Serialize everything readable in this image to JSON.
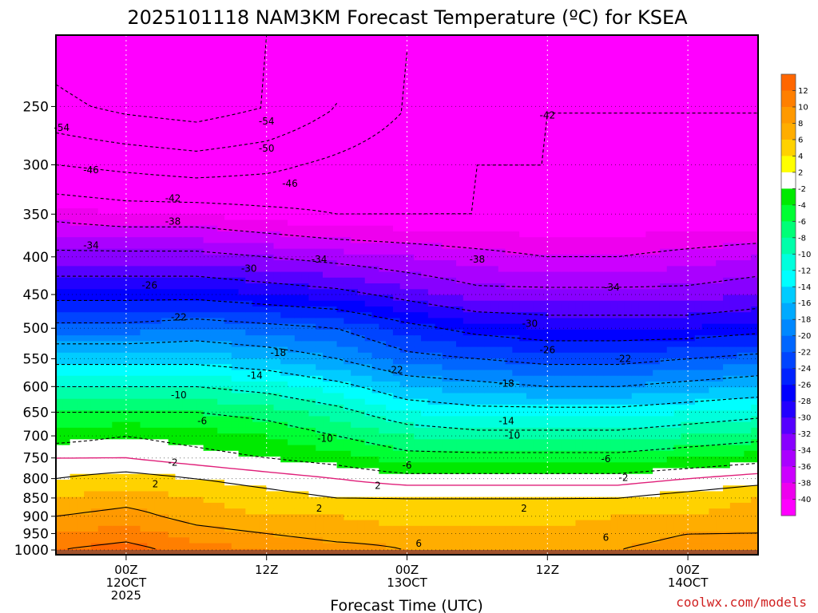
{
  "title": "2025101118 NAM3KM Forecast Temperature (ºC) for KSEA",
  "credit": "coolwx.com/models",
  "chart_data": {
    "type": "heatmap",
    "title": "2025101118 NAM3KM Forecast Temperature (ºC) for KSEA",
    "xlabel": "Forecast Time (UTC)",
    "ylabel": "",
    "x_ticks": [
      {
        "hour": 6,
        "l1": "00Z",
        "l2": "12OCT",
        "l3": "2025"
      },
      {
        "hour": 18,
        "l1": "12Z",
        "l2": "",
        "l3": ""
      },
      {
        "hour": 30,
        "l1": "00Z",
        "l2": "13OCT",
        "l3": ""
      },
      {
        "hour": 42,
        "l1": "12Z",
        "l2": "",
        "l3": ""
      },
      {
        "hour": 54,
        "l1": "00Z",
        "l2": "14OCT",
        "l3": ""
      }
    ],
    "xlim": [
      0,
      60
    ],
    "y_ticks": [
      250,
      300,
      350,
      400,
      450,
      500,
      550,
      600,
      650,
      700,
      750,
      800,
      850,
      900,
      950,
      1000
    ],
    "ylim": [
      1015,
      200
    ],
    "y_scale": "log",
    "grid": true,
    "times": [
      0,
      6,
      12,
      18,
      24,
      30,
      36,
      42,
      48,
      54,
      60
    ],
    "levels": [
      200,
      250,
      300,
      350,
      400,
      450,
      500,
      550,
      600,
      650,
      700,
      750,
      800,
      850,
      900,
      950,
      1000
    ],
    "temperature": [
      [
        -56,
        -58,
        -56,
        -54,
        -50,
        -46,
        -44,
        -42,
        -42,
        -42,
        -42
      ],
      [
        -53,
        -55,
        -56,
        -54,
        -50,
        -46,
        -44,
        -42,
        -42,
        -42,
        -42
      ],
      [
        -46,
        -47,
        -48,
        -47,
        -45,
        -43,
        -42,
        -42,
        -42,
        -42,
        -42
      ],
      [
        -39,
        -40,
        -40,
        -41,
        -42,
        -42,
        -42,
        -42,
        -42,
        -42,
        -42
      ],
      [
        -33,
        -33,
        -33,
        -34,
        -35,
        -36,
        -37,
        -38,
        -38,
        -37,
        -36
      ],
      [
        -27,
        -27,
        -27,
        -28,
        -29,
        -31,
        -33,
        -33,
        -33,
        -33,
        -32
      ],
      [
        -21,
        -21,
        -20,
        -21,
        -22,
        -25,
        -27,
        -28,
        -28,
        -28,
        -27
      ],
      [
        -15,
        -15,
        -15,
        -16,
        -18,
        -21,
        -22,
        -23,
        -23,
        -22,
        -21
      ],
      [
        -10,
        -10,
        -10,
        -11,
        -13,
        -16,
        -17,
        -18,
        -18,
        -17,
        -16
      ],
      [
        -6,
        -6,
        -6,
        -7,
        -9,
        -12,
        -13,
        -13,
        -13,
        -12,
        -11
      ],
      [
        -3,
        -2,
        -3,
        -4,
        -6,
        -8,
        -9,
        -9,
        -9,
        -8,
        -7
      ],
      [
        0,
        0,
        -1,
        -2,
        -3,
        -5,
        -5,
        -5,
        -5,
        -4,
        -3
      ],
      [
        2,
        3,
        2,
        1,
        0,
        -1,
        -1,
        -1,
        -1,
        0,
        1
      ],
      [
        4,
        5,
        4,
        3,
        2,
        2,
        2,
        2,
        2,
        3,
        4
      ],
      [
        6,
        7,
        5,
        4,
        4,
        3,
        3,
        3,
        4,
        4,
        5
      ],
      [
        8,
        9,
        7,
        6,
        5,
        5,
        5,
        5,
        5,
        6,
        6
      ],
      [
        10,
        11,
        9,
        8,
        7,
        6,
        6,
        6,
        6,
        7,
        8
      ]
    ],
    "contour_labels": [
      {
        "t": 0.5,
        "p": 267,
        "v": "-54"
      },
      {
        "t": 18,
        "p": 262,
        "v": "-54"
      },
      {
        "t": 42,
        "p": 257,
        "v": "-42"
      },
      {
        "t": 18,
        "p": 285,
        "v": "-50"
      },
      {
        "t": 3,
        "p": 305,
        "v": "-46"
      },
      {
        "t": 20,
        "p": 318,
        "v": "-46"
      },
      {
        "t": 10,
        "p": 333,
        "v": "-42"
      },
      {
        "t": 10,
        "p": 358,
        "v": "-38"
      },
      {
        "t": 36,
        "p": 403,
        "v": "-38"
      },
      {
        "t": 3,
        "p": 386,
        "v": "-34"
      },
      {
        "t": 22.5,
        "p": 403,
        "v": "-34"
      },
      {
        "t": 47.5,
        "p": 440,
        "v": "-34"
      },
      {
        "t": 16.5,
        "p": 415,
        "v": "-30"
      },
      {
        "t": 8,
        "p": 437,
        "v": "-26"
      },
      {
        "t": 42,
        "p": 535,
        "v": "-26"
      },
      {
        "t": 40.5,
        "p": 493,
        "v": "-30"
      },
      {
        "t": 10.5,
        "p": 483,
        "v": "-22"
      },
      {
        "t": 29,
        "p": 570,
        "v": "-22"
      },
      {
        "t": 48.5,
        "p": 550,
        "v": "-22"
      },
      {
        "t": 19,
        "p": 540,
        "v": "-18"
      },
      {
        "t": 38.5,
        "p": 594,
        "v": "-18"
      },
      {
        "t": 17,
        "p": 580,
        "v": "-14"
      },
      {
        "t": 38.5,
        "p": 668,
        "v": "-14"
      },
      {
        "t": 10.5,
        "p": 616,
        "v": "-10"
      },
      {
        "t": 23,
        "p": 706,
        "v": "-10"
      },
      {
        "t": 39,
        "p": 699,
        "v": "-10"
      },
      {
        "t": 12.5,
        "p": 668,
        "v": "-6"
      },
      {
        "t": 30,
        "p": 768,
        "v": "-6"
      },
      {
        "t": 47,
        "p": 752,
        "v": "-6"
      },
      {
        "t": 10,
        "p": 761,
        "v": "-2"
      },
      {
        "t": 48.5,
        "p": 798,
        "v": "-2"
      },
      {
        "t": 8.5,
        "p": 814,
        "v": "2"
      },
      {
        "t": 27.5,
        "p": 818,
        "v": "2"
      },
      {
        "t": 22.5,
        "p": 878,
        "v": "2"
      },
      {
        "t": 40,
        "p": 878,
        "v": "2"
      },
      {
        "t": 31,
        "p": 980,
        "v": "6"
      },
      {
        "t": 47,
        "p": 962,
        "v": "6"
      }
    ],
    "colorbar": {
      "labels": [
        "12",
        "10",
        "8",
        "6",
        "4",
        "2",
        "-2",
        "-4",
        "-6",
        "-8",
        "-10",
        "-12",
        "-14",
        "-16",
        "-18",
        "-20",
        "-22",
        "-24",
        "-26",
        "-28",
        "-30",
        "-32",
        "-34",
        "-36",
        "-38",
        "-40"
      ],
      "colors": [
        "#ff6600",
        "#ff7f00",
        "#ff9900",
        "#ffad00",
        "#ffd200",
        "#ffff00",
        "#ffffff",
        "#00ea00",
        "#00ff33",
        "#00ff77",
        "#00ffaa",
        "#00ffdd",
        "#00ffff",
        "#00ccff",
        "#00aaff",
        "#0088ff",
        "#0066ff",
        "#0044ff",
        "#0022ff",
        "#0000ff",
        "#2200ff",
        "#5500ff",
        "#8800ff",
        "#aa00ff",
        "#cc00ff",
        "#ee00ee",
        "#ff00ff"
      ]
    },
    "ground_color": "#a0522d",
    "freezing_color": "#e0207a"
  }
}
